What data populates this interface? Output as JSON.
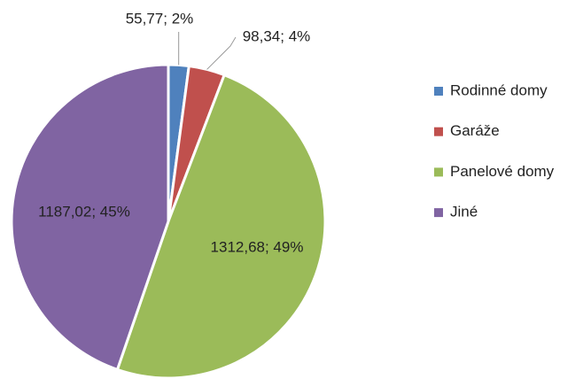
{
  "chart_data": {
    "type": "pie",
    "categories": [
      "Rodinné domy",
      "Garáže",
      "Panelové domy",
      "Jiné"
    ],
    "values": [
      55.77,
      98.34,
      1312.68,
      1187.02
    ],
    "value_labels": [
      "55,77; 2%",
      "98,34; 4%",
      "1312,68; 49%",
      "1187,02; 45%"
    ],
    "colors": [
      "#4f81bd",
      "#c0504d",
      "#9bbb59",
      "#8064a2"
    ],
    "legend": "right"
  }
}
